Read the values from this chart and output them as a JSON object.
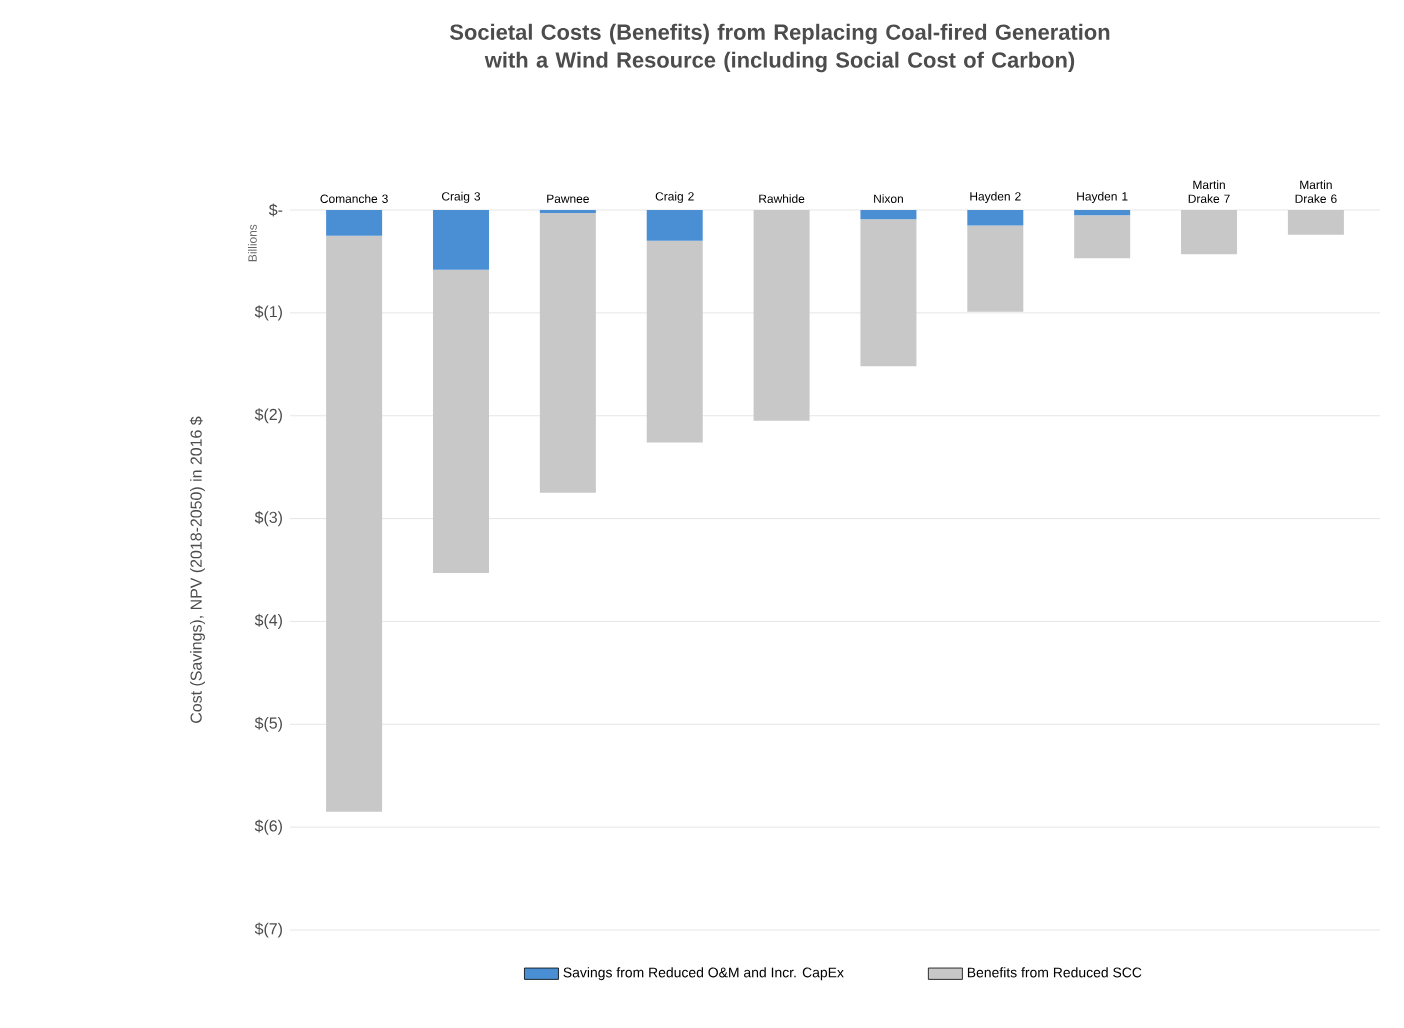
{
  "chart_data": {
    "type": "bar",
    "stacked": true,
    "title": "Societal Costs (Benefits) from Replacing Coal-fired Generation with a Wind Resource (including Social Cost of Carbon)",
    "ylabel": "Cost (Savings), NPV (2018-2050) in 2016 $",
    "annotations": [
      "Billions"
    ],
    "categories": [
      "Comanche 3",
      "Craig 3",
      "Pawnee",
      "Craig 2",
      "Rawhide",
      "Nixon",
      "Hayden 2",
      "Hayden 1",
      "Martin Drake 7",
      "Martin Drake 6"
    ],
    "series": [
      {
        "name": "Savings from Reduced O&M and Incr. CapEx",
        "color": "#4a8fd4",
        "values": [
          -0.25,
          -0.58,
          -0.03,
          -0.3,
          0,
          -0.09,
          -0.15,
          -0.05,
          0,
          0
        ]
      },
      {
        "name": "Benefits from Reduced SCC",
        "color": "#c8c8c8",
        "values": [
          -5.6,
          -2.95,
          -2.72,
          -1.96,
          -2.05,
          -1.43,
          -0.84,
          -0.42,
          -0.43,
          -0.24
        ]
      }
    ],
    "ylim": [
      -7,
      0
    ],
    "yticks": [
      {
        "value": 0,
        "label": "$-"
      },
      {
        "value": -1,
        "label": "$(1)"
      },
      {
        "value": -2,
        "label": "$(2)"
      },
      {
        "value": -3,
        "label": "$(3)"
      },
      {
        "value": -4,
        "label": "$(4)"
      },
      {
        "value": -5,
        "label": "$(5)"
      },
      {
        "value": -6,
        "label": "$(6)"
      },
      {
        "value": -7,
        "label": "$(7)"
      }
    ],
    "grid": "y",
    "legend": "bottom"
  }
}
